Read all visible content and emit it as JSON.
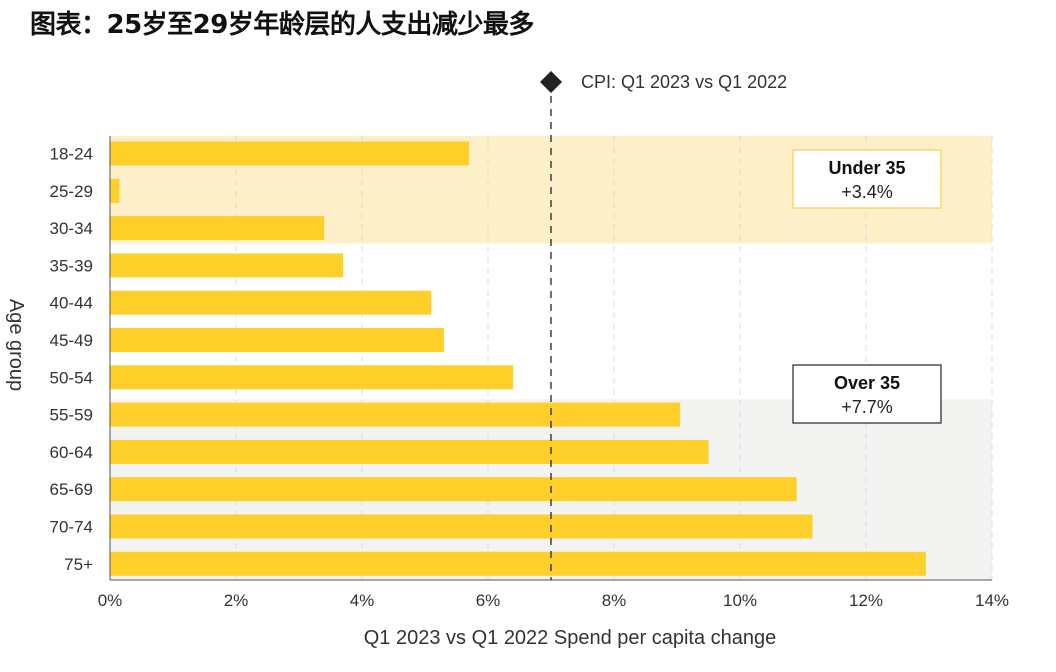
{
  "title": "图表：25岁至29岁年龄层的人支出减少最多",
  "chart_data": {
    "type": "bar",
    "orientation": "horizontal",
    "categories": [
      "18-24",
      "25-29",
      "30-34",
      "35-39",
      "40-44",
      "45-49",
      "50-54",
      "55-59",
      "60-64",
      "65-69",
      "70-74",
      "75+"
    ],
    "values": [
      5.7,
      0.15,
      3.4,
      3.7,
      5.1,
      5.3,
      6.4,
      9.05,
      9.5,
      10.9,
      11.15,
      12.95
    ],
    "xlabel": "Q1 2023 vs Q1 2022 Spend per capita change",
    "ylabel": "Age group",
    "xlim": [
      0,
      14
    ],
    "xticks": [
      "0%",
      "2%",
      "4%",
      "6%",
      "8%",
      "10%",
      "12%",
      "14%"
    ],
    "grid": "vertical dashed",
    "bar_color": "#FFD02A",
    "reference_line": {
      "label": "CPI: Q1 2023 vs Q1 2022",
      "value": 7.0,
      "color": "#222222"
    },
    "groups": [
      {
        "label": "Under 35",
        "value": "+3.4%",
        "categories": [
          "18-24",
          "25-29",
          "30-34"
        ],
        "background": "#FDF0C8",
        "border": "#F7D55A"
      },
      {
        "label": "Over 35",
        "value": "+7.7%",
        "categories": [
          "55-59",
          "60-64",
          "65-69",
          "70-74",
          "75+"
        ],
        "background": "#F3F4F2",
        "border": "#333333"
      }
    ]
  }
}
